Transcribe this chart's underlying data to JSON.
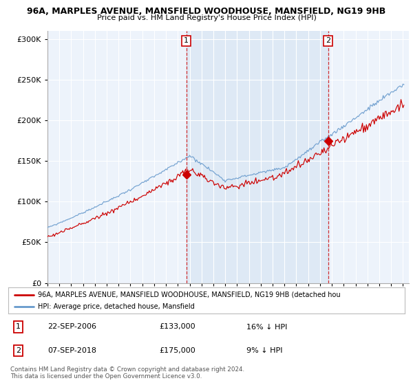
{
  "title": "96A, MARPLES AVENUE, MANSFIELD WOODHOUSE, MANSFIELD, NG19 9HB",
  "subtitle": "Price paid vs. HM Land Registry's House Price Index (HPI)",
  "legend_line1": "96A, MARPLES AVENUE, MANSFIELD WOODHOUSE, MANSFIELD, NG19 9HB (detached hou",
  "legend_line2": "HPI: Average price, detached house, Mansfield",
  "footer1": "Contains HM Land Registry data © Crown copyright and database right 2024.",
  "footer2": "This data is licensed under the Open Government Licence v3.0.",
  "sale1_date_label": "22-SEP-2006",
  "sale1_price_label": "£133,000",
  "sale1_hpi_label": "16% ↓ HPI",
  "sale2_date_label": "07-SEP-2018",
  "sale2_price_label": "£175,000",
  "sale2_hpi_label": "9% ↓ HPI",
  "sale1_x": 2006.72,
  "sale1_y": 133000,
  "sale2_x": 2018.69,
  "sale2_y": 175000,
  "property_color": "#cc0000",
  "hpi_color": "#6699cc",
  "shade_color": "#dce8f5",
  "vline_color": "#cc0000",
  "plot_bg": "#edf3fb",
  "grid_color": "#ffffff",
  "ylim": [
    0,
    310000
  ],
  "xlim_start": 1995.0,
  "xlim_end": 2025.5
}
